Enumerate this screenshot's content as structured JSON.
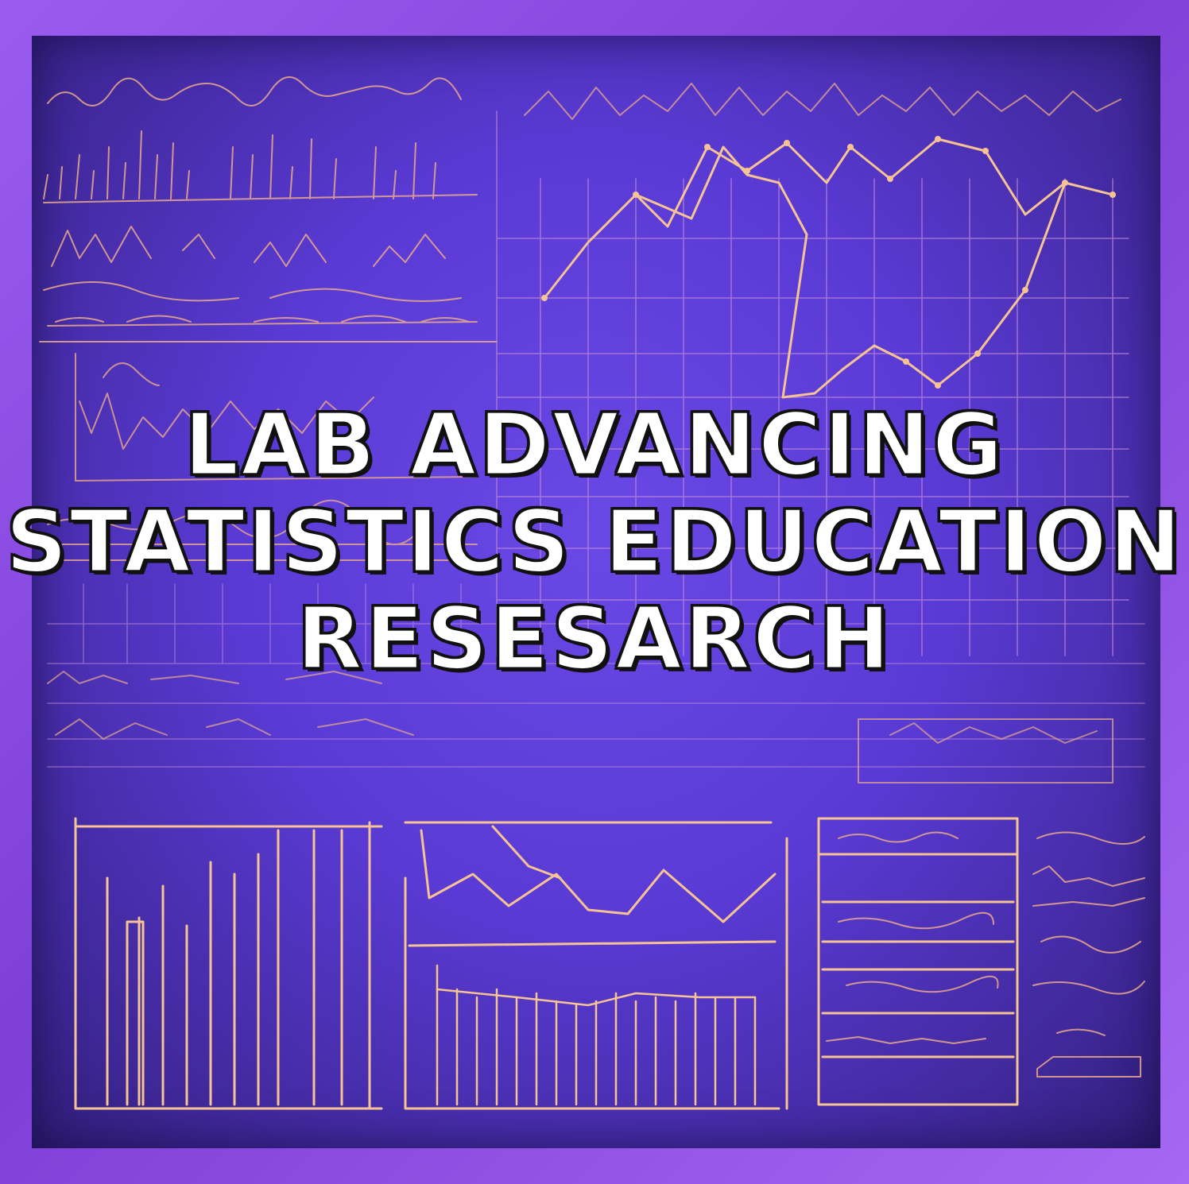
{
  "title": {
    "line1": "LAB ADVANCING",
    "line2": "STATISTICS EDUCATION",
    "line3": "RESESARCH"
  },
  "colors": {
    "frame": "#8f4fe0",
    "board": "#5a3ad4",
    "chalk": "#f2b48a",
    "grid": "#c08ad8",
    "title_fill": "#ffffff",
    "title_outline": "#111111"
  }
}
